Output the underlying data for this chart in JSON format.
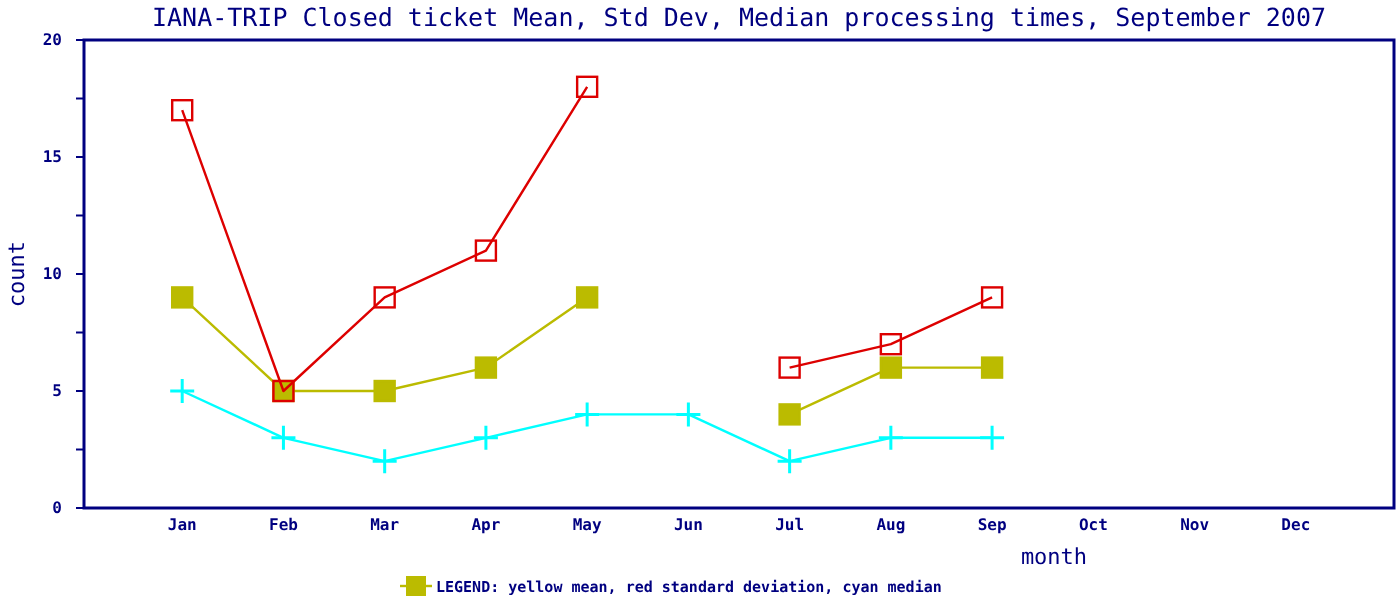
{
  "chart_data": {
    "type": "line",
    "title": "IANA-TRIP Closed ticket Mean, Std Dev, Median processing times, September 2007",
    "xlabel": "month",
    "ylabel": "count",
    "categories": [
      "Jan",
      "Feb",
      "Mar",
      "Apr",
      "May",
      "Jun",
      "Jul",
      "Aug",
      "Sep",
      "Oct",
      "Nov",
      "Dec"
    ],
    "series": [
      {
        "color": "#bbbb00",
        "marker": "square",
        "values": [
          9,
          5,
          5,
          6,
          9,
          null,
          4,
          6,
          6,
          null,
          null,
          null
        ]
      },
      {
        "color": "#dd0000",
        "marker": "square",
        "values": [
          17,
          5,
          9,
          11,
          18,
          null,
          6,
          7,
          9,
          null,
          null,
          null
        ]
      },
      {
        "color": "#00ffff",
        "marker": "cross",
        "values": [
          5,
          3,
          2,
          3,
          4,
          4,
          2,
          3,
          3,
          null,
          null,
          null
        ]
      }
    ],
    "ylim": [
      0,
      20
    ],
    "yticks": [
      0,
      {
        "value": 2.5,
        "label": null
      },
      5,
      {
        "value": 7.5,
        "label": null
      },
      10,
      {
        "value": 12.5,
        "label": null
      },
      15,
      {
        "value": 17.5,
        "label": null
      },
      20
    ],
    "grid": false,
    "annotations": [
      "LEGEND: yellow mean, red standard deviation, cyan median"
    ]
  }
}
